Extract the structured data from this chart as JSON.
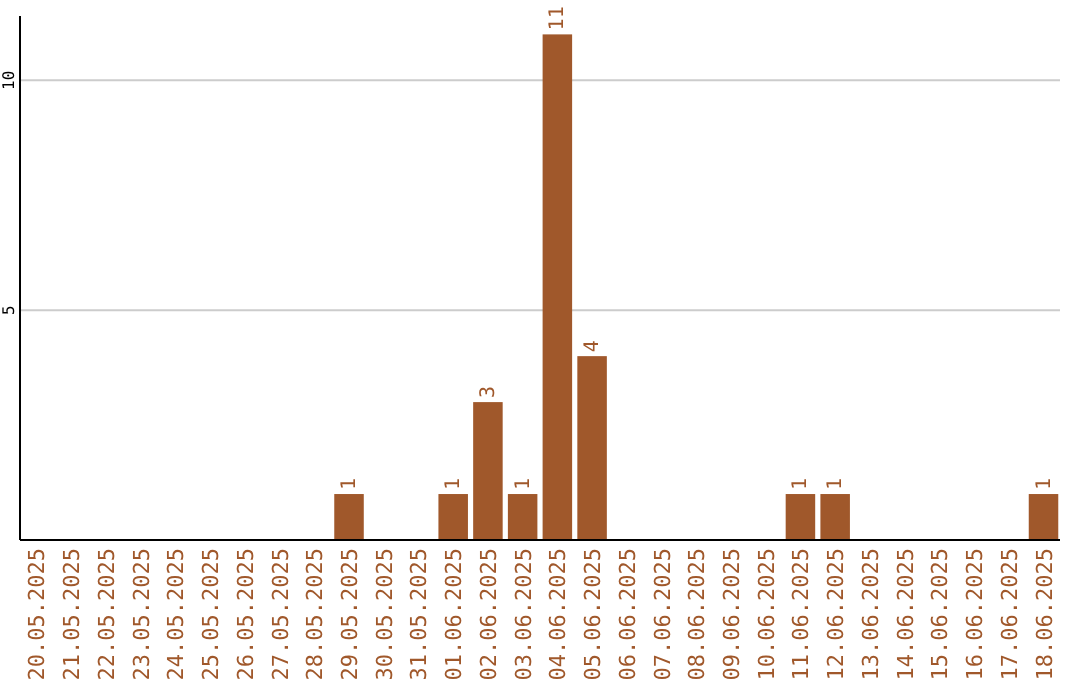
{
  "chart_data": {
    "type": "bar",
    "categories": [
      "20.05.2025",
      "21.05.2025",
      "22.05.2025",
      "23.05.2025",
      "24.05.2025",
      "25.05.2025",
      "26.05.2025",
      "27.05.2025",
      "28.05.2025",
      "29.05.2025",
      "30.05.2025",
      "31.05.2025",
      "01.06.2025",
      "02.06.2025",
      "03.06.2025",
      "04.06.2025",
      "05.06.2025",
      "06.06.2025",
      "07.06.2025",
      "08.06.2025",
      "09.06.2025",
      "10.06.2025",
      "11.06.2025",
      "12.06.2025",
      "13.06.2025",
      "14.06.2025",
      "15.06.2025",
      "16.06.2025",
      "17.06.2025",
      "18.06.2025"
    ],
    "values": [
      0,
      0,
      0,
      0,
      0,
      0,
      0,
      0,
      0,
      1,
      0,
      0,
      1,
      3,
      1,
      11,
      4,
      0,
      0,
      0,
      0,
      0,
      1,
      1,
      0,
      0,
      0,
      0,
      0,
      1
    ],
    "value_labels": [
      null,
      null,
      null,
      null,
      null,
      null,
      null,
      null,
      null,
      "1",
      null,
      null,
      "1",
      "3",
      "1",
      "11",
      "4",
      null,
      null,
      null,
      null,
      null,
      "1",
      "1",
      null,
      null,
      null,
      null,
      null,
      "1"
    ],
    "color": "#a0582b",
    "ylim": [
      0,
      11.4
    ],
    "yticks": [
      5,
      10
    ],
    "grid": "y"
  }
}
